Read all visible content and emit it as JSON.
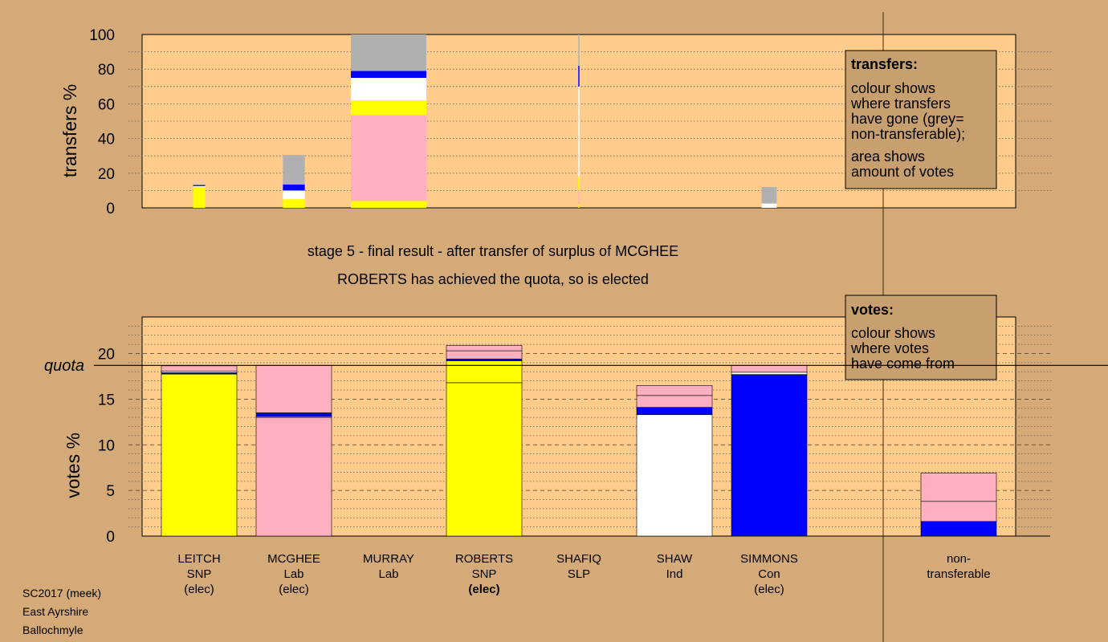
{
  "colors": {
    "background": "#d4aa78",
    "plot_bg": "#ffcc8c",
    "legend_bg": "#c8a070",
    "SNP": "#ffff00",
    "Lab": "#ffb0c0",
    "Ind": "#ffffff",
    "Con": "#0000ff",
    "SLP": "#ff0000",
    "nontransferable": "#b0b0b0"
  },
  "captions": {
    "stage": "stage 5 - final result - after transfer of surplus of MCGHEE",
    "status": "ROBERTS has achieved the quota, so is elected"
  },
  "footer": [
    "SC2017 (meek)",
    "East Ayrshire",
    "Ballochmyle"
  ],
  "legends": {
    "transfers": {
      "title": "transfers:",
      "lines": [
        "colour shows",
        "where transfers",
        "have gone (grey=",
        "non-transferable);",
        "area shows",
        "amount of votes"
      ]
    },
    "votes": {
      "title": "votes:",
      "lines": [
        "colour shows",
        "where votes",
        "have come from"
      ]
    }
  },
  "chart_data": [
    {
      "type": "bar",
      "stacked": true,
      "ylabel": "transfers %",
      "ylim": [
        0,
        100
      ],
      "yticks": [
        0,
        20,
        40,
        60,
        80,
        100
      ],
      "grid": "dotted",
      "legend": "right",
      "columns": [
        {
          "name": "LEITCH",
          "width": 0.16,
          "segments": [
            {
              "party": "SNP",
              "value": 12.0
            },
            {
              "party": "Ind",
              "value": 0.5
            },
            {
              "party": "Con",
              "value": 0.6
            },
            {
              "party": "nontransferable",
              "value": 0.6
            }
          ]
        },
        {
          "name": "MCGHEE",
          "width": 0.29,
          "segments": [
            {
              "party": "SNP",
              "value": 5.0
            },
            {
              "party": "Ind",
              "value": 5.0
            },
            {
              "party": "Con",
              "value": 3.5
            },
            {
              "party": "nontransferable",
              "value": 17.0
            }
          ]
        },
        {
          "name": "MURRAY",
          "width": 1.0,
          "segments": [
            {
              "party": "SNP",
              "value": 4.0
            },
            {
              "party": "Lab",
              "value": 49.5
            },
            {
              "party": "SNP",
              "value": 8.5
            },
            {
              "party": "Ind",
              "value": 13.0
            },
            {
              "party": "Con",
              "value": 4.0
            },
            {
              "party": "nontransferable",
              "value": 21.0
            }
          ]
        },
        {
          "name": "ROBERTS",
          "width": 0.0,
          "segments": []
        },
        {
          "name": "SHAFIQ",
          "width": 0.0,
          "segments": [
            {
              "party": "SNP",
              "value": 2.0
            },
            {
              "party": "Lab",
              "value": 8.0
            },
            {
              "party": "SNP",
              "value": 8.0
            },
            {
              "party": "Ind",
              "value": 52.0
            },
            {
              "party": "Con",
              "value": 12.0
            },
            {
              "party": "nontransferable",
              "value": 18.0
            }
          ]
        },
        {
          "name": "SHAW",
          "width": 0.0,
          "segments": []
        },
        {
          "name": "SIMMONS",
          "width": 0.2,
          "segments": [
            {
              "party": "Ind",
              "value": 2.5
            },
            {
              "party": "nontransferable",
              "value": 9.5
            }
          ]
        }
      ]
    },
    {
      "type": "bar",
      "stacked": true,
      "ylabel": "votes %",
      "ylim": [
        0,
        24
      ],
      "yticks": [
        0,
        5,
        10,
        15,
        20
      ],
      "quota": 18.7,
      "quota_label": "quota",
      "grid": "dotted",
      "legend": "right",
      "candidates": [
        {
          "name": "LEITCH",
          "party": "SNP",
          "status": "(elec)",
          "bold": false,
          "segments": [
            {
              "party": "SNP",
              "value": 17.75
            },
            {
              "party": "Con",
              "value": 0.15
            },
            {
              "party": "Ind",
              "value": 0.15
            },
            {
              "party": "Lab",
              "value": 0.6
            }
          ]
        },
        {
          "name": "MCGHEE",
          "party": "Lab",
          "status": "(elec)",
          "bold": false,
          "segments": [
            {
              "party": "Lab",
              "value": 13.0
            },
            {
              "party": "Ind",
              "value": 0.1
            },
            {
              "party": "Con",
              "value": 0.4
            },
            {
              "party": "Lab",
              "value": 5.2
            }
          ]
        },
        {
          "name": "MURRAY",
          "party": "Lab",
          "status": "",
          "bold": false,
          "segments": []
        },
        {
          "name": "ROBERTS",
          "party": "SNP",
          "status": "(elec)",
          "bold": true,
          "segments": [
            {
              "party": "SNP",
              "value": 16.8
            },
            {
              "party": "SNP",
              "value": 2.4
            },
            {
              "party": "Con",
              "value": 0.2
            },
            {
              "party": "Lab",
              "value": 0.9
            },
            {
              "party": "Lab",
              "value": 0.6
            }
          ]
        },
        {
          "name": "SHAFIQ",
          "party": "SLP",
          "status": "",
          "bold": false,
          "segments": []
        },
        {
          "name": "SHAW",
          "party": "Ind",
          "status": "",
          "bold": false,
          "segments": [
            {
              "party": "Ind",
              "value": 13.3
            },
            {
              "party": "Con",
              "value": 0.8
            },
            {
              "party": "Lab",
              "value": 1.3
            },
            {
              "party": "Lab",
              "value": 1.1
            }
          ]
        },
        {
          "name": "SIMMONS",
          "party": "Con",
          "status": "(elec)",
          "bold": false,
          "segments": [
            {
              "party": "Con",
              "value": 17.7
            },
            {
              "party": "Ind",
              "value": 0.25
            },
            {
              "party": "Lab",
              "value": 0.75
            }
          ]
        }
      ],
      "nontransferable": {
        "label_lines": [
          "non-",
          "transferable"
        ],
        "segments": [
          {
            "party": "Con",
            "value": 1.6
          },
          {
            "party": "Lab",
            "value": 2.2
          },
          {
            "party": "Lab",
            "value": 3.1
          }
        ]
      }
    }
  ]
}
